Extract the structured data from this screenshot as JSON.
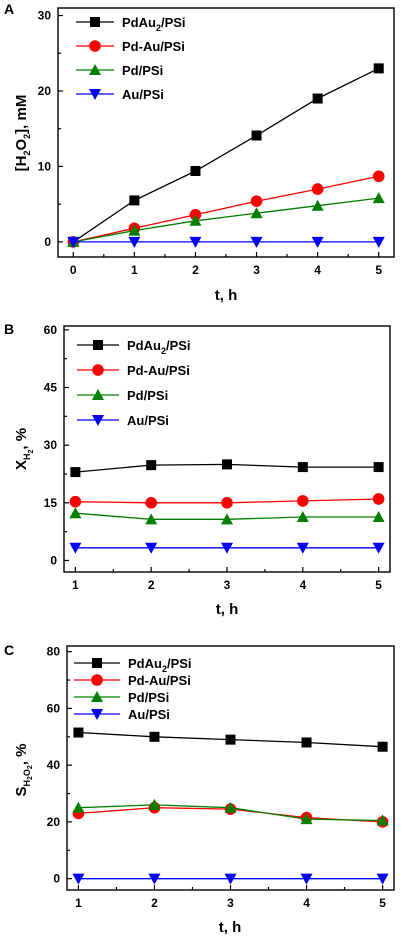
{
  "chart_data": [
    {
      "type": "line",
      "panel": "A",
      "x": [
        0,
        1,
        2,
        3,
        4,
        5
      ],
      "xlim": [
        -0.25,
        5.25
      ],
      "ylim": [
        -2,
        31
      ],
      "xticks": [
        "0",
        "1",
        "2",
        "3",
        "4",
        "5"
      ],
      "yticks": [
        "0",
        "10",
        "20",
        "30"
      ],
      "xlabel": "t, h",
      "ylabel_parts": {
        "a": "[H",
        "b": "2",
        "c": "O",
        "d": "2",
        "e": "], mM"
      },
      "legend_position": "top-left",
      "series": [
        {
          "name_parts": {
            "main": "PdAu",
            "sub": "2",
            "tail": "/PSi"
          },
          "values": [
            0,
            5.5,
            9.4,
            14.1,
            19.0,
            23.0
          ],
          "color": "#000000",
          "marker": "square"
        },
        {
          "name": "Pd-Au/PSi",
          "values": [
            0,
            1.8,
            3.6,
            5.4,
            7.0,
            8.7
          ],
          "color": "#ff0000",
          "marker": "circle"
        },
        {
          "name": "Pd/PSi",
          "values": [
            0,
            1.5,
            2.8,
            3.8,
            4.8,
            5.8
          ],
          "color": "#008000",
          "marker": "triangle-up"
        },
        {
          "name": "Au/PSi",
          "values": [
            0,
            0,
            0,
            0,
            0,
            0
          ],
          "color": "#0000ff",
          "marker": "triangle-down"
        }
      ]
    },
    {
      "type": "line",
      "panel": "B",
      "x": [
        1,
        2,
        3,
        4,
        5
      ],
      "xlim": [
        0.85,
        5.15
      ],
      "ylim": [
        -3,
        61
      ],
      "xticks": [
        "1",
        "2",
        "3",
        "4",
        "5"
      ],
      "yticks": [
        "0",
        "15",
        "30",
        "45",
        "60"
      ],
      "xlabel": "t, h",
      "ylabel_parts": {
        "a": "X",
        "b": "H",
        "c": "2",
        "d": ", %"
      },
      "legend_position": "top-left",
      "series": [
        {
          "name_parts": {
            "main": "PdAu",
            "sub": "2",
            "tail": "/PSi"
          },
          "values": [
            23.0,
            24.8,
            25.0,
            24.3,
            24.3
          ],
          "color": "#000000",
          "marker": "square"
        },
        {
          "name": "Pd-Au/PSi",
          "values": [
            15.3,
            15.0,
            15.0,
            15.5,
            16.0
          ],
          "color": "#ff0000",
          "marker": "circle"
        },
        {
          "name": "Pd/PSi",
          "values": [
            12.3,
            10.7,
            10.7,
            11.3,
            11.3
          ],
          "color": "#008000",
          "marker": "triangle-up"
        },
        {
          "name": "Au/PSi",
          "values": [
            3.3,
            3.3,
            3.3,
            3.3,
            3.3
          ],
          "color": "#0000ff",
          "marker": "triangle-down"
        }
      ]
    },
    {
      "type": "line",
      "panel": "C",
      "x": [
        1,
        2,
        3,
        4,
        5
      ],
      "xlim": [
        0.85,
        5.15
      ],
      "ylim": [
        -4,
        82
      ],
      "xticks": [
        "1",
        "2",
        "3",
        "4",
        "5"
      ],
      "yticks": [
        "0",
        "20",
        "40",
        "60",
        "80"
      ],
      "xlabel": "t, h",
      "ylabel_parts": {
        "a": "S",
        "b": "H",
        "c": "2",
        "d": "O",
        "e": "2",
        "f": ", %"
      },
      "legend_position": "top-left",
      "series": [
        {
          "name_parts": {
            "main": "PdAu",
            "sub": "2",
            "tail": "/PSi"
          },
          "values": [
            51.5,
            50.0,
            49.0,
            48.0,
            46.5
          ],
          "color": "#000000",
          "marker": "square"
        },
        {
          "name": "Pd-Au/PSi",
          "values": [
            23.0,
            25.0,
            24.5,
            21.5,
            20.0
          ],
          "color": "#ff0000",
          "marker": "circle"
        },
        {
          "name": "Pd/PSi",
          "values": [
            25.0,
            26.0,
            25.0,
            21.0,
            20.5
          ],
          "color": "#008000",
          "marker": "triangle-up"
        },
        {
          "name": "Au/PSi",
          "values": [
            0,
            0,
            0,
            0,
            0
          ],
          "color": "#0000ff",
          "marker": "triangle-down"
        }
      ]
    }
  ]
}
